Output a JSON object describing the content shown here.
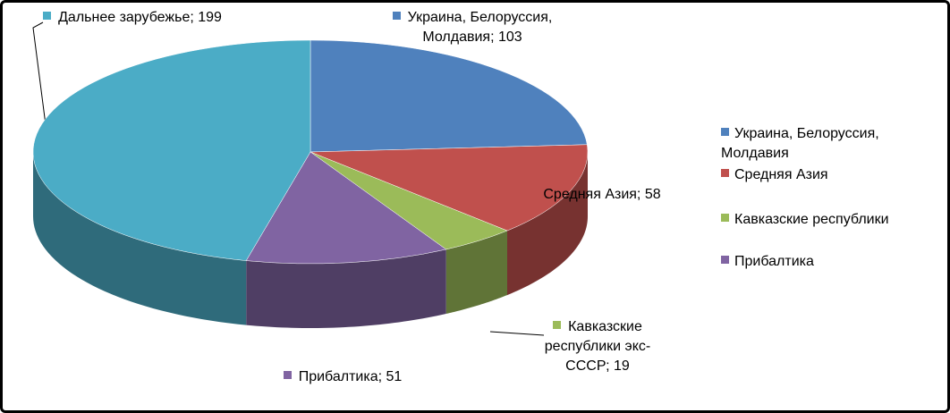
{
  "chart_data": {
    "type": "pie",
    "categories": [
      "Украина, Белоруссия, Молдавия",
      "Средняя Азия",
      "Кавказские республики",
      "Прибалтика",
      "Дальнее зарубежье"
    ],
    "values": [
      103,
      58,
      19,
      51,
      199
    ],
    "value_labels": [
      "Украина, Белоруссия, Молдавия; 103",
      "Средняя Азия; 58",
      "Кавказские республики экс-СССР; 19",
      "Прибалтика; 51",
      "Дальнее зарубежье; 199"
    ],
    "colors": [
      "#4f81bd",
      "#c0504d",
      "#9bbb59",
      "#8064a2",
      "#4bacc6"
    ],
    "legend": {
      "position": "right",
      "labels": [
        "Украина, Белоруссия, Молдавия",
        "Средняя Азия",
        "Кавказские республики",
        "Прибалтика"
      ]
    }
  }
}
